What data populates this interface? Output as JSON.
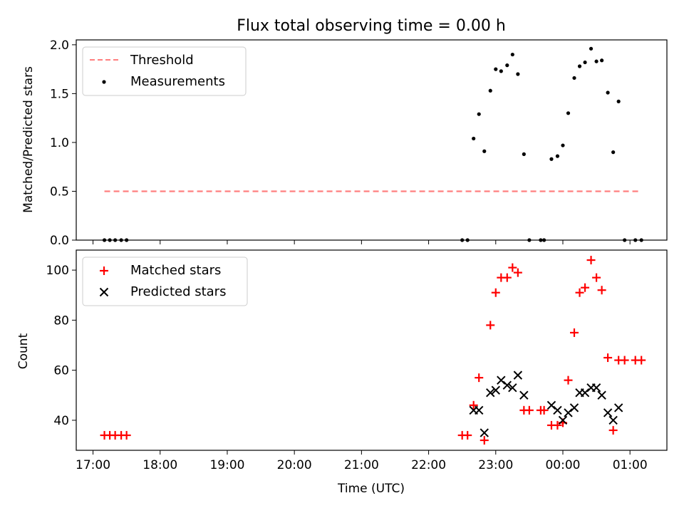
{
  "figure": {
    "title": "Flux total observing time = 0.00 h"
  },
  "colors": {
    "threshold": "#ff7f7f",
    "measurements": "#000000",
    "matched": "#ff0000",
    "predicted": "#000000",
    "axis": "#000000"
  },
  "chart_data": [
    {
      "type": "scatter",
      "title": "Flux total observing time = 0.00 h",
      "xlabel": "",
      "ylabel": "Matched/Predicted stars",
      "x_unit": "hours since 17:00 UTC",
      "xlim": [
        -0.25,
        8.55
      ],
      "ylim": [
        0,
        2.05
      ],
      "yticks": [
        0.0,
        0.5,
        1.0,
        1.5,
        2.0
      ],
      "ytick_labels": [
        "0.0",
        "0.5",
        "1.0",
        "1.5",
        "2.0"
      ],
      "legend_position": "upper-left",
      "grid": false,
      "series": [
        {
          "name": "Threshold",
          "kind": "dashed-line",
          "points": [
            [
              0.17,
              0.5
            ],
            [
              8.17,
              0.5
            ]
          ]
        },
        {
          "name": "Measurements",
          "kind": "dots",
          "points": [
            [
              0.17,
              0.0
            ],
            [
              0.25,
              0.0
            ],
            [
              0.33,
              0.0
            ],
            [
              0.42,
              0.0
            ],
            [
              0.5,
              0.0
            ],
            [
              5.5,
              0.0
            ],
            [
              5.58,
              0.0
            ],
            [
              5.67,
              1.04
            ],
            [
              5.75,
              1.29
            ],
            [
              5.83,
              0.91
            ],
            [
              5.92,
              1.53
            ],
            [
              6.0,
              1.75
            ],
            [
              6.08,
              1.73
            ],
            [
              6.17,
              1.79
            ],
            [
              6.25,
              1.9
            ],
            [
              6.33,
              1.7
            ],
            [
              6.42,
              0.88
            ],
            [
              6.5,
              0.0
            ],
            [
              6.67,
              0.0
            ],
            [
              6.72,
              0.0
            ],
            [
              6.83,
              0.83
            ],
            [
              6.92,
              0.86
            ],
            [
              7.0,
              0.97
            ],
            [
              7.08,
              1.3
            ],
            [
              7.17,
              1.66
            ],
            [
              7.25,
              1.78
            ],
            [
              7.33,
              1.82
            ],
            [
              7.42,
              1.96
            ],
            [
              7.5,
              1.83
            ],
            [
              7.58,
              1.84
            ],
            [
              7.67,
              1.51
            ],
            [
              7.75,
              0.9
            ],
            [
              7.83,
              1.42
            ],
            [
              7.92,
              0.0
            ],
            [
              8.08,
              0.0
            ],
            [
              8.17,
              0.0
            ]
          ]
        }
      ]
    },
    {
      "type": "scatter",
      "xlabel": "Time (UTC)",
      "ylabel": "Count",
      "x_unit": "hours since 17:00 UTC",
      "xlim": [
        -0.25,
        8.55
      ],
      "ylim": [
        28,
        108
      ],
      "xticks": [
        0,
        1,
        2,
        3,
        4,
        5,
        6,
        7,
        8
      ],
      "xtick_labels": [
        "17:00",
        "18:00",
        "19:00",
        "20:00",
        "21:00",
        "22:00",
        "23:00",
        "00:00",
        "01:00"
      ],
      "yticks": [
        40,
        60,
        80,
        100
      ],
      "ytick_labels": [
        "40",
        "60",
        "80",
        "100"
      ],
      "legend_position": "upper-left",
      "grid": false,
      "series": [
        {
          "name": "Matched stars",
          "kind": "plus",
          "points": [
            [
              0.17,
              34
            ],
            [
              0.25,
              34
            ],
            [
              0.33,
              34
            ],
            [
              0.42,
              34
            ],
            [
              0.5,
              34
            ],
            [
              5.5,
              34
            ],
            [
              5.58,
              34
            ],
            [
              5.67,
              46
            ],
            [
              5.75,
              57
            ],
            [
              5.83,
              32
            ],
            [
              5.92,
              78
            ],
            [
              6.0,
              91
            ],
            [
              6.08,
              97
            ],
            [
              6.17,
              97
            ],
            [
              6.25,
              101
            ],
            [
              6.33,
              99
            ],
            [
              6.42,
              44
            ],
            [
              6.5,
              44
            ],
            [
              6.67,
              44
            ],
            [
              6.72,
              44
            ],
            [
              6.83,
              38
            ],
            [
              6.92,
              38
            ],
            [
              7.0,
              39
            ],
            [
              7.08,
              56
            ],
            [
              7.17,
              75
            ],
            [
              7.25,
              91
            ],
            [
              7.33,
              93
            ],
            [
              7.42,
              104
            ],
            [
              7.5,
              97
            ],
            [
              7.58,
              92
            ],
            [
              7.67,
              65
            ],
            [
              7.75,
              36
            ],
            [
              7.83,
              64
            ],
            [
              7.92,
              64
            ],
            [
              8.08,
              64
            ],
            [
              8.17,
              64
            ]
          ]
        },
        {
          "name": "Predicted stars",
          "kind": "cross",
          "points": [
            [
              5.67,
              44
            ],
            [
              5.75,
              44
            ],
            [
              5.83,
              35
            ],
            [
              5.92,
              51
            ],
            [
              6.0,
              52
            ],
            [
              6.08,
              56
            ],
            [
              6.17,
              54
            ],
            [
              6.25,
              53
            ],
            [
              6.33,
              58
            ],
            [
              6.42,
              50
            ],
            [
              6.83,
              46
            ],
            [
              6.92,
              44
            ],
            [
              7.0,
              40
            ],
            [
              7.08,
              43
            ],
            [
              7.17,
              45
            ],
            [
              7.25,
              51
            ],
            [
              7.33,
              51
            ],
            [
              7.42,
              53
            ],
            [
              7.5,
              53
            ],
            [
              7.58,
              50
            ],
            [
              7.67,
              43
            ],
            [
              7.75,
              40
            ],
            [
              7.83,
              45
            ]
          ]
        }
      ]
    }
  ]
}
